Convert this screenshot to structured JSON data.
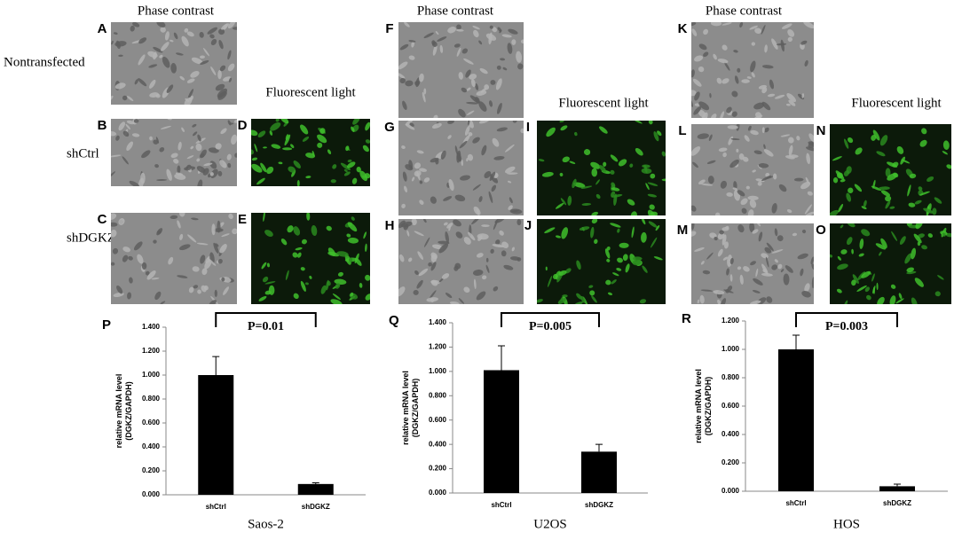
{
  "columns": [
    {
      "phase_header": "Phase contrast",
      "fluor_header": "Fluorescent light"
    },
    {
      "phase_header": "Phase contrast",
      "fluor_header": "Fluorescent light"
    },
    {
      "phase_header": "Phase contrast",
      "fluor_header": "Fluorescent light"
    }
  ],
  "row_labels": [
    "Nontransfected",
    "shCtrl",
    "shDGKZ"
  ],
  "panel_labels": [
    "A",
    "B",
    "C",
    "D",
    "E",
    "F",
    "G",
    "H",
    "I",
    "J",
    "K",
    "L",
    "M",
    "N",
    "O"
  ],
  "chart_data": [
    {
      "type": "bar",
      "panel_label": "P",
      "x_label": "Saos-2",
      "y_label": [
        "relative mRNA level",
        "(DGKZ/GAPDH)"
      ],
      "annotation": "P=0.01",
      "categories": [
        "shCtrl",
        "shDGKZ"
      ],
      "values": [
        1.0,
        0.09
      ],
      "errors": [
        0.155,
        0.01
      ],
      "color": "#000000",
      "ylim": [
        0,
        1.4
      ],
      "yticks": [
        {
          "value": 0,
          "label": "0.000"
        },
        {
          "value": 0.2,
          "label": "0.200"
        },
        {
          "value": 0.4,
          "label": "0.400"
        },
        {
          "value": 0.6,
          "label": "0.600"
        },
        {
          "value": 0.8,
          "label": "0.800"
        },
        {
          "value": 1.0,
          "label": "1.000"
        },
        {
          "value": 1.2,
          "label": "1.200"
        },
        {
          "value": 1.4,
          "label": "1.400"
        }
      ]
    },
    {
      "type": "bar",
      "panel_label": "Q",
      "x_label": "U2OS",
      "y_label": [
        "relative mRNA level",
        "(DGKZ/GAPDH)"
      ],
      "annotation": "P=0.005",
      "categories": [
        "shCtrl",
        "shDGKZ"
      ],
      "values": [
        1.01,
        0.34
      ],
      "errors": [
        0.2,
        0.06
      ],
      "color": "#000000",
      "ylim": [
        0,
        1.4
      ],
      "yticks": [
        {
          "value": 0,
          "label": "0.000"
        },
        {
          "value": 0.2,
          "label": "0.200"
        },
        {
          "value": 0.4,
          "label": "0.400"
        },
        {
          "value": 0.6,
          "label": "0.600"
        },
        {
          "value": 0.8,
          "label": "0.800"
        },
        {
          "value": 1.0,
          "label": "1.000"
        },
        {
          "value": 1.2,
          "label": "1.200"
        },
        {
          "value": 1.4,
          "label": "1.400"
        }
      ]
    },
    {
      "type": "bar",
      "panel_label": "R",
      "x_label": "HOS",
      "y_label": [
        "relative mRNA level",
        "(DGKZ/GAPDH)"
      ],
      "annotation": "P=0.003",
      "categories": [
        "shCtrl",
        "shDGKZ"
      ],
      "values": [
        1.0,
        0.035
      ],
      "errors": [
        0.1,
        0.015
      ],
      "color": "#000000",
      "ylim": [
        0,
        1.2
      ],
      "yticks": [
        {
          "value": 0,
          "label": "0.000"
        },
        {
          "value": 0.2,
          "label": "0.200"
        },
        {
          "value": 0.4,
          "label": "0.400"
        },
        {
          "value": 0.6,
          "label": "0.600"
        },
        {
          "value": 0.8,
          "label": "0.800"
        },
        {
          "value": 1.0,
          "label": "1.000"
        },
        {
          "value": 1.2,
          "label": "1.200"
        }
      ]
    }
  ]
}
